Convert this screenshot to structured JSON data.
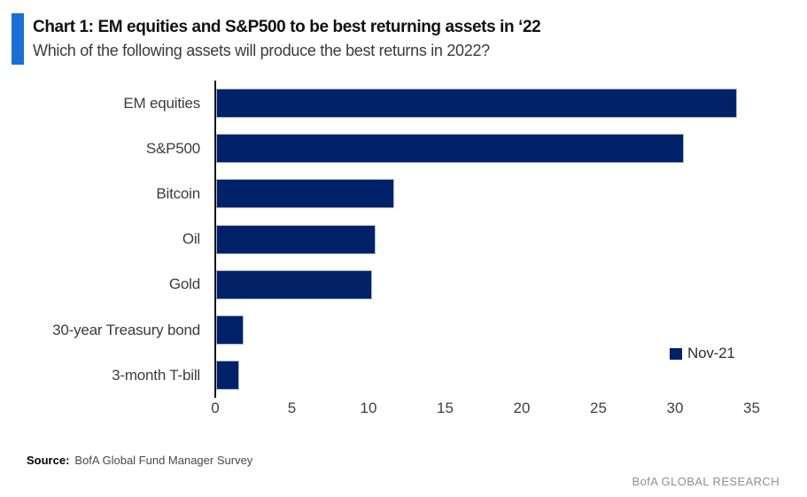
{
  "header": {
    "title": "Chart 1:  EM equities and S&P500 to be best returning assets in ‘22",
    "subtitle": "Which of the following assets will produce the best returns in 2022?"
  },
  "chart_data": {
    "type": "bar",
    "orientation": "horizontal",
    "title": "Chart 1:  EM equities and S&P500 to be best returning assets in ‘22",
    "subtitle": "Which of the following assets will produce the best returns in 2022?",
    "categories": [
      "EM equities",
      "S&P500",
      "Bitcoin",
      "Oil",
      "Gold",
      "30-year Treasury bond",
      "3-month T-bill"
    ],
    "series": [
      {
        "name": "Nov-21",
        "values": [
          34,
          30.5,
          11.6,
          10.4,
          10.2,
          1.8,
          1.5
        ]
      }
    ],
    "xlabel": "",
    "ylabel": "",
    "xlim": [
      0,
      35
    ],
    "x_ticks": [
      0,
      5,
      10,
      15,
      20,
      25,
      30,
      35
    ],
    "grid": false,
    "legend_position": "right-middle",
    "bar_color": "#012169"
  },
  "legend": {
    "label": "Nov-21"
  },
  "footer": {
    "source_label": "Source:",
    "source_text": "BofA Global Fund Manager Survey",
    "brand": "BofA GLOBAL RESEARCH"
  },
  "colors": {
    "bar": "#012169",
    "bar_border": "#a9b6d2",
    "accent": "#1b6ed3",
    "axis": "#141414",
    "brand_text": "#8f8f8f"
  }
}
